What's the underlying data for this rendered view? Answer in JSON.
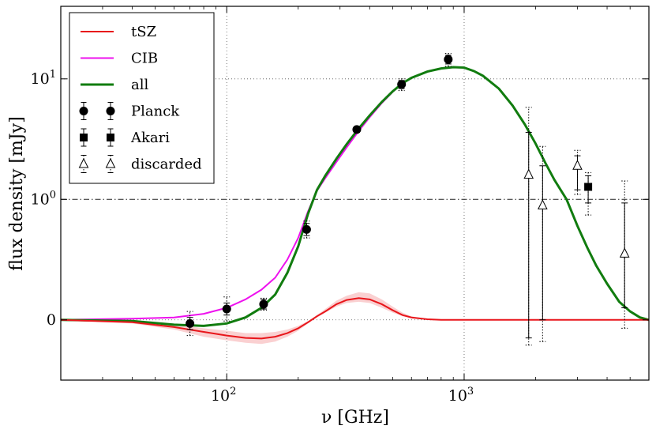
{
  "chart_data": {
    "type": "line",
    "xlabel": "ν [GHz]",
    "ylabel": "flux density [mJy]",
    "xscale": "log",
    "yscale": "symlog",
    "xlim": [
      20,
      6000
    ],
    "ylim": [
      -0.5,
      40
    ],
    "x_ticks": [
      {
        "v": 100,
        "base": "10",
        "exp": "2"
      },
      {
        "v": 1000,
        "base": "10",
        "exp": "3"
      }
    ],
    "y_ticks": [
      {
        "v": 0,
        "base": "0",
        "exp": ""
      },
      {
        "v": 1,
        "base": "10",
        "exp": "0"
      },
      {
        "v": 10,
        "base": "10",
        "exp": "1"
      }
    ],
    "grid": true,
    "legend_position": "top-left",
    "reference_line": {
      "y": 1,
      "style": "dash-dot"
    },
    "legend": [
      {
        "key": "tsz",
        "label": "tSZ",
        "color": "#e8161b",
        "marker": "line"
      },
      {
        "key": "cib",
        "label": "CIB",
        "color": "#ee11ee",
        "marker": "line"
      },
      {
        "key": "all",
        "label": "all",
        "color": "#117c0f",
        "marker": "line"
      },
      {
        "key": "planck",
        "label": "Planck",
        "color": "#000000",
        "marker": "circle"
      },
      {
        "key": "akari",
        "label": "Akari",
        "color": "#000000",
        "marker": "square"
      },
      {
        "key": "discarded",
        "label": "discarded",
        "color": "#000000",
        "marker": "triangle"
      }
    ],
    "series": [
      {
        "key": "tsz",
        "name": "tSZ",
        "color": "#e8161b",
        "x": [
          20,
          40,
          60,
          80,
          100,
          120,
          140,
          160,
          180,
          200,
          220,
          240,
          260,
          290,
          320,
          360,
          400,
          450,
          500,
          550,
          600,
          700,
          800,
          1000,
          1500,
          2000,
          3000,
          6000
        ],
        "y": [
          0,
          -0.02,
          -0.06,
          -0.1,
          -0.13,
          -0.15,
          -0.155,
          -0.14,
          -0.11,
          -0.07,
          -0.02,
          0.03,
          0.07,
          0.13,
          0.165,
          0.18,
          0.17,
          0.13,
          0.08,
          0.04,
          0.02,
          0.005,
          0,
          0,
          0,
          0,
          0,
          0
        ],
        "band_lower": [
          0,
          -0.03,
          -0.08,
          -0.14,
          -0.17,
          -0.19,
          -0.2,
          -0.18,
          -0.14,
          -0.09,
          -0.03,
          0.02,
          0.06,
          0.11,
          0.14,
          0.15,
          0.14,
          0.1,
          0.06,
          0.03,
          0.015,
          0.003,
          0,
          0,
          0,
          0,
          0,
          0
        ],
        "band_upper": [
          0,
          -0.01,
          -0.04,
          -0.07,
          -0.09,
          -0.11,
          -0.11,
          -0.1,
          -0.08,
          -0.05,
          -0.01,
          0.04,
          0.09,
          0.16,
          0.2,
          0.23,
          0.22,
          0.17,
          0.11,
          0.06,
          0.03,
          0.008,
          0,
          0,
          0,
          0,
          0,
          0
        ]
      },
      {
        "key": "cib",
        "name": "CIB",
        "color": "#ee11ee",
        "x": [
          20,
          40,
          60,
          80,
          100,
          120,
          140,
          160,
          180,
          200,
          220,
          240,
          260,
          290,
          320,
          360,
          400,
          450,
          500,
          550
        ],
        "y": [
          0,
          0.01,
          0.02,
          0.05,
          0.1,
          0.17,
          0.25,
          0.35,
          0.5,
          0.68,
          0.9,
          1.18,
          1.5,
          2.05,
          2.7,
          3.7,
          4.8,
          6.3,
          7.8,
          9.2
        ]
      },
      {
        "key": "all",
        "name": "all",
        "color": "#117c0f",
        "x": [
          20,
          40,
          60,
          80,
          100,
          120,
          140,
          160,
          180,
          200,
          220,
          240,
          260,
          290,
          320,
          360,
          400,
          450,
          500,
          550,
          600,
          700,
          800,
          900,
          1000,
          1100,
          1200,
          1400,
          1600,
          1800,
          2000,
          2200,
          2400,
          2700,
          3000,
          3300,
          3600,
          4000,
          4500,
          5000,
          5500,
          6000
        ],
        "y": [
          0,
          -0.01,
          -0.04,
          -0.05,
          -0.03,
          0.02,
          0.1,
          0.21,
          0.39,
          0.61,
          0.88,
          1.2,
          1.57,
          2.18,
          2.87,
          3.88,
          4.97,
          6.43,
          7.88,
          9.2,
          10.2,
          11.5,
          12.2,
          12.5,
          12.4,
          11.6,
          10.6,
          8.3,
          6.0,
          4.2,
          2.9,
          2.0,
          1.45,
          1.0,
          0.78,
          0.6,
          0.45,
          0.3,
          0.15,
          0.07,
          0.02,
          0
        ]
      }
    ],
    "points": [
      {
        "key": "planck",
        "marker": "circle",
        "filled": true,
        "data": [
          {
            "x": 70,
            "y": -0.03,
            "err_stat": 0.05,
            "err_sys": 0.1
          },
          {
            "x": 100,
            "y": 0.09,
            "err_stat": 0.05,
            "err_sys": 0.1
          },
          {
            "x": 143,
            "y": 0.13,
            "err_stat": 0.04,
            "err_sys": 0.05
          },
          {
            "x": 217,
            "y": 0.75,
            "err_stat": 0.05,
            "err_sys": 0.07
          },
          {
            "x": 353,
            "y": 3.8,
            "err_stat": 0.15,
            "err_sys": 0.2
          },
          {
            "x": 545,
            "y": 9.0,
            "err_stat": 0.7,
            "err_sys": 1.0
          },
          {
            "x": 857,
            "y": 14.5,
            "err_stat": 1.2,
            "err_sys": 1.8
          }
        ]
      },
      {
        "key": "akari",
        "marker": "square",
        "filled": true,
        "data": [
          {
            "x": 3330,
            "y": 1.27,
            "err_stat": 0.3,
            "err_sys": 0.4
          }
        ]
      }
    ],
    "discarded": [
      {
        "x": 1870,
        "y": 1.6,
        "lo": -0.15,
        "hi": 3.6,
        "lo_sys": -0.21,
        "hi_sys": 5.8
      },
      {
        "x": 2140,
        "y": 0.95,
        "lo": 0.0,
        "hi": 1.9,
        "lo_sys": -0.18,
        "hi_sys": 2.75
      },
      {
        "x": 3000,
        "y": 1.9,
        "lo": 1.2,
        "hi": 2.3,
        "lo_sys": 1.1,
        "hi_sys": 2.55
      },
      {
        "x": 4740,
        "y": 0.55,
        "lo": 0.1,
        "hi": 0.97,
        "lo_sys": -0.07,
        "hi_sys": 1.42
      }
    ]
  }
}
